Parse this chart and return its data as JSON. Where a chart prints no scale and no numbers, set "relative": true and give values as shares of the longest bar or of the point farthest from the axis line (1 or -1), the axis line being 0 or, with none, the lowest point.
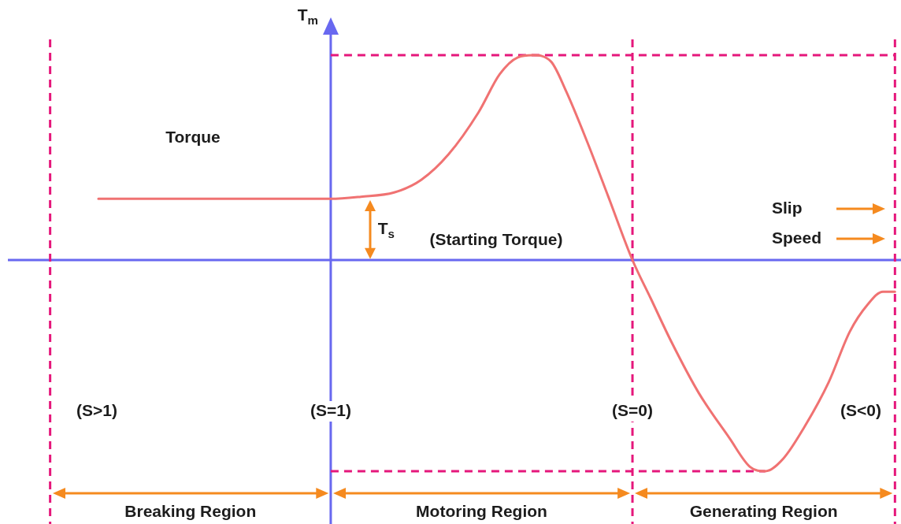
{
  "chart_data": {
    "type": "line",
    "relative": true,
    "ylabel": "Torque",
    "xlabel": "Slip",
    "marker": "none",
    "xlim": [
      2.07,
      -0.89
    ],
    "xticks": [
      {
        "value": 1,
        "label": "(S=1)"
      },
      {
        "value": 0,
        "label": "(S=0)"
      }
    ],
    "series": [
      {
        "color": "#f07272",
        "x": [
          1.77,
          1,
          0.9,
          0.79,
          0.7,
          0.61,
          0.51,
          0.44,
          0.38,
          0.33,
          0.27,
          0.22,
          0.15,
          0.08,
          0,
          -0.06,
          -0.13,
          -0.22,
          -0.32,
          -0.39,
          -0.44,
          -0.5,
          -0.57,
          -0.65,
          -0.72,
          -0.78,
          -0.83,
          -0.87
        ],
        "values": [
          0.29,
          0.29,
          0.3,
          0.32,
          0.38,
          0.5,
          0.7,
          0.88,
          0.96,
          0.97,
          0.94,
          0.8,
          0.56,
          0.3,
          0,
          -0.18,
          -0.39,
          -0.63,
          -0.84,
          -0.98,
          -1,
          -0.94,
          -0.79,
          -0.58,
          -0.34,
          -0.21,
          -0.15,
          -0.15
        ]
      },
      {
        "type": "line",
        "color": "#e5177b",
        "line_style": "dashed",
        "x": [
          1,
          -0.87
        ],
        "values": [
          0.97,
          0.97
        ]
      },
      {
        "type": "line",
        "color": "#e5177b",
        "line_style": "dashed",
        "x": [
          1,
          -0.44
        ],
        "values": [
          -1,
          -1
        ]
      }
    ],
    "ref_lines": [
      {
        "axis": "y",
        "value": 0,
        "color": "#6868f0",
        "line_style": "solid"
      },
      {
        "axis": "x",
        "value": 1,
        "label": "T$_{m}$",
        "color": "#6868f0",
        "line_style": "solid"
      },
      {
        "axis": "x",
        "value": 1.93,
        "color": "#e5177b",
        "line_style": "dashed"
      },
      {
        "axis": "x",
        "value": 0,
        "color": "#e5177b",
        "line_style": "dashed"
      },
      {
        "axis": "x",
        "value": -0.87,
        "color": "#e5177b",
        "line_style": "dashed"
      }
    ],
    "annotations": [
      {
        "text": "T$_{s}$",
        "x": 0.87,
        "y": 0.29
      },
      "(Starting Torque)",
      "(S>1)",
      "(S<0)",
      "Breaking Region",
      "Motoring Region",
      "Generating Region",
      "Speed"
    ]
  }
}
